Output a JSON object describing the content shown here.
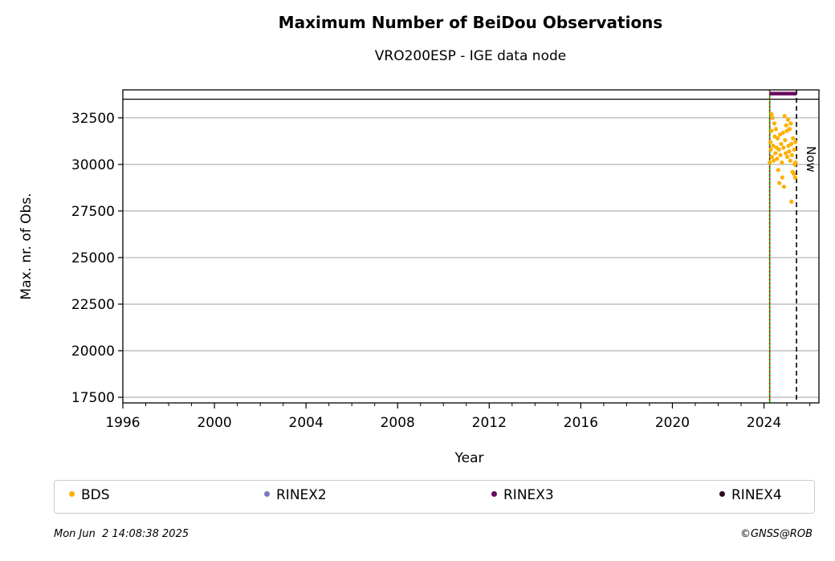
{
  "chart_data": {
    "type": "scatter",
    "title": "Maximum Number of BeiDou Observations",
    "subtitle": "VRO200ESP - IGE data node",
    "xlabel": "Year",
    "ylabel": "Max. nr. of Obs.",
    "xlim": [
      1996,
      2026.4
    ],
    "ylim": [
      17200,
      34000
    ],
    "xticks": [
      1996,
      2000,
      2004,
      2008,
      2012,
      2016,
      2020,
      2024
    ],
    "yticks": [
      17500,
      20000,
      22500,
      25000,
      27500,
      30000,
      32500
    ],
    "grid": "horizontal",
    "series": [
      {
        "name": "BDS",
        "color": "#ffb000",
        "points": [
          [
            2024.25,
            30100
          ],
          [
            2024.28,
            31200
          ],
          [
            2024.3,
            30800
          ],
          [
            2024.33,
            31800
          ],
          [
            2024.35,
            30400
          ],
          [
            2024.38,
            32500
          ],
          [
            2024.4,
            31000
          ],
          [
            2024.42,
            30200
          ],
          [
            2024.45,
            32200
          ],
          [
            2024.47,
            31500
          ],
          [
            2024.5,
            30600
          ],
          [
            2024.52,
            31900
          ],
          [
            2024.55,
            30900
          ],
          [
            2024.57,
            30300
          ],
          [
            2024.6,
            31400
          ],
          [
            2024.62,
            29700
          ],
          [
            2024.65,
            30800
          ],
          [
            2024.67,
            29000
          ],
          [
            2024.7,
            31600
          ],
          [
            2024.72,
            30500
          ],
          [
            2024.75,
            31100
          ],
          [
            2024.78,
            30100
          ],
          [
            2024.8,
            29300
          ],
          [
            2024.83,
            31700
          ],
          [
            2024.85,
            30900
          ],
          [
            2024.87,
            28800
          ],
          [
            2024.9,
            32600
          ],
          [
            2024.92,
            31300
          ],
          [
            2024.95,
            30600
          ],
          [
            2024.97,
            32100
          ],
          [
            2025.0,
            31800
          ],
          [
            2025.02,
            30400
          ],
          [
            2025.05,
            32400
          ],
          [
            2025.07,
            31000
          ],
          [
            2025.1,
            30700
          ],
          [
            2025.12,
            31900
          ],
          [
            2025.15,
            30200
          ],
          [
            2025.17,
            32200
          ],
          [
            2025.2,
            31100
          ],
          [
            2025.22,
            30500
          ],
          [
            2025.25,
            29600
          ],
          [
            2025.27,
            31400
          ],
          [
            2025.3,
            29500
          ],
          [
            2025.32,
            30800
          ],
          [
            2025.34,
            30000
          ],
          [
            2025.36,
            29300
          ],
          [
            2025.37,
            31200
          ],
          [
            2025.38,
            30100
          ],
          [
            2025.2,
            28000
          ],
          [
            2024.33,
            32700
          ]
        ]
      },
      {
        "name": "RINEX2",
        "color": "#7a7abf",
        "points": []
      },
      {
        "name": "RINEX3",
        "color": "#6a0a5e",
        "segments": [
          [
            2024.25,
            2025.42,
            33800
          ]
        ]
      },
      {
        "name": "RINEX4",
        "color": "#2d0622",
        "points": []
      }
    ],
    "vlines": [
      {
        "x": 2024.25,
        "color": "#00aa00",
        "style": "solid"
      },
      {
        "x": 2024.25,
        "color": "#cc0000",
        "style": "dotted"
      },
      {
        "x": 2025.42,
        "color": "#000000",
        "style": "dashed",
        "label": "Now"
      }
    ],
    "hline": {
      "y": 33500,
      "color": "#000000"
    }
  },
  "legend": [
    {
      "label": "BDS",
      "color": "#ffb000"
    },
    {
      "label": "RINEX2",
      "color": "#7a7abf"
    },
    {
      "label": "RINEX3",
      "color": "#6a0a5e"
    },
    {
      "label": "RINEX4",
      "color": "#2d0622"
    }
  ],
  "footer": {
    "timestamp": "Mon Jun  2 14:08:38 2025",
    "copyright": "©GNSS@ROB"
  }
}
